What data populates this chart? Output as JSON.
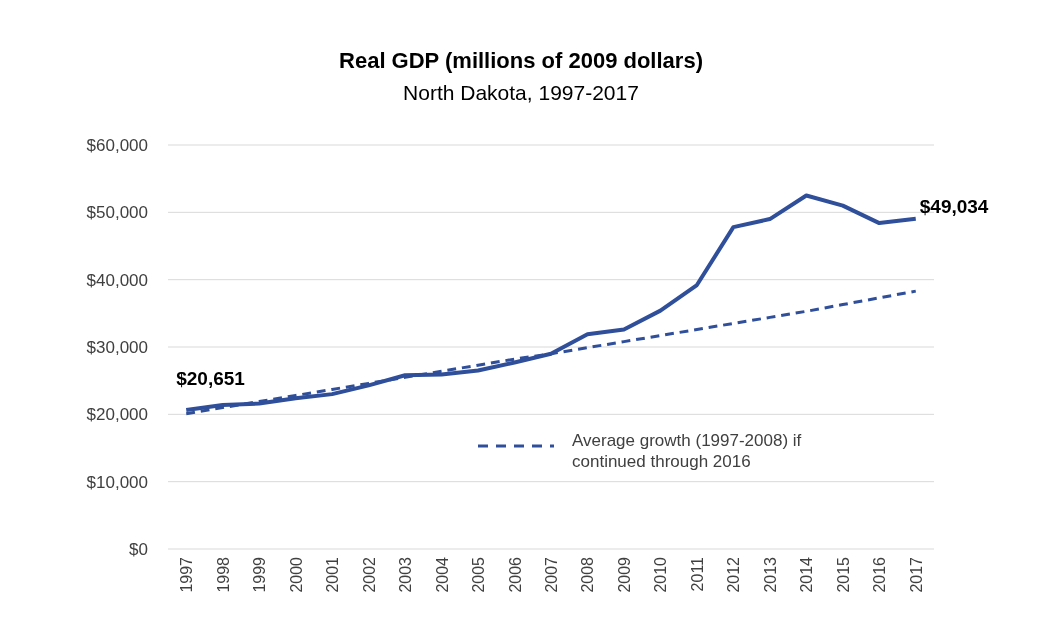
{
  "chart_data": {
    "type": "line",
    "title": "Real GDP (millions of 2009 dollars)",
    "subtitle": "North Dakota, 1997-2017",
    "categories": [
      "1997",
      "1998",
      "1999",
      "2000",
      "2001",
      "2002",
      "2003",
      "2004",
      "2005",
      "2006",
      "2007",
      "2008",
      "2009",
      "2010",
      "2011",
      "2012",
      "2013",
      "2014",
      "2015",
      "2016",
      "2017"
    ],
    "series": [
      {
        "color": "#2f4f9b",
        "line_style": "solid",
        "values": [
          20651,
          21400,
          21600,
          22400,
          23000,
          24300,
          25800,
          25900,
          26500,
          27700,
          29000,
          31900,
          32600,
          35400,
          39200,
          47800,
          49000,
          52500,
          51000,
          48400,
          49034
        ],
        "value_labels": [
          "$20,651",
          null,
          null,
          null,
          null,
          null,
          null,
          null,
          null,
          null,
          null,
          null,
          null,
          null,
          null,
          null,
          null,
          null,
          null,
          null,
          "$49,034"
        ]
      },
      {
        "name": "Average growth (1997-2008) if continued through 2016",
        "color": "#2f4f9b",
        "line_style": "dashed",
        "values": [
          20100,
          21000,
          21900,
          22800,
          23700,
          24600,
          25500,
          26400,
          27300,
          28200,
          29000,
          29900,
          30800,
          31700,
          32600,
          33500,
          34400,
          35300,
          36300,
          37300,
          38300
        ]
      }
    ],
    "ylim": [
      0,
      60000
    ],
    "yticks": [
      {
        "value": 0,
        "label": "$0"
      },
      {
        "value": 10000,
        "label": "$10,000"
      },
      {
        "value": 20000,
        "label": "$20,000"
      },
      {
        "value": 30000,
        "label": "$30,000"
      },
      {
        "value": 40000,
        "label": "$40,000"
      },
      {
        "value": 50000,
        "label": "$50,000"
      },
      {
        "value": 60000,
        "label": "$60,000"
      }
    ],
    "grid": "y",
    "legend": "bottom right",
    "marker": "none"
  }
}
